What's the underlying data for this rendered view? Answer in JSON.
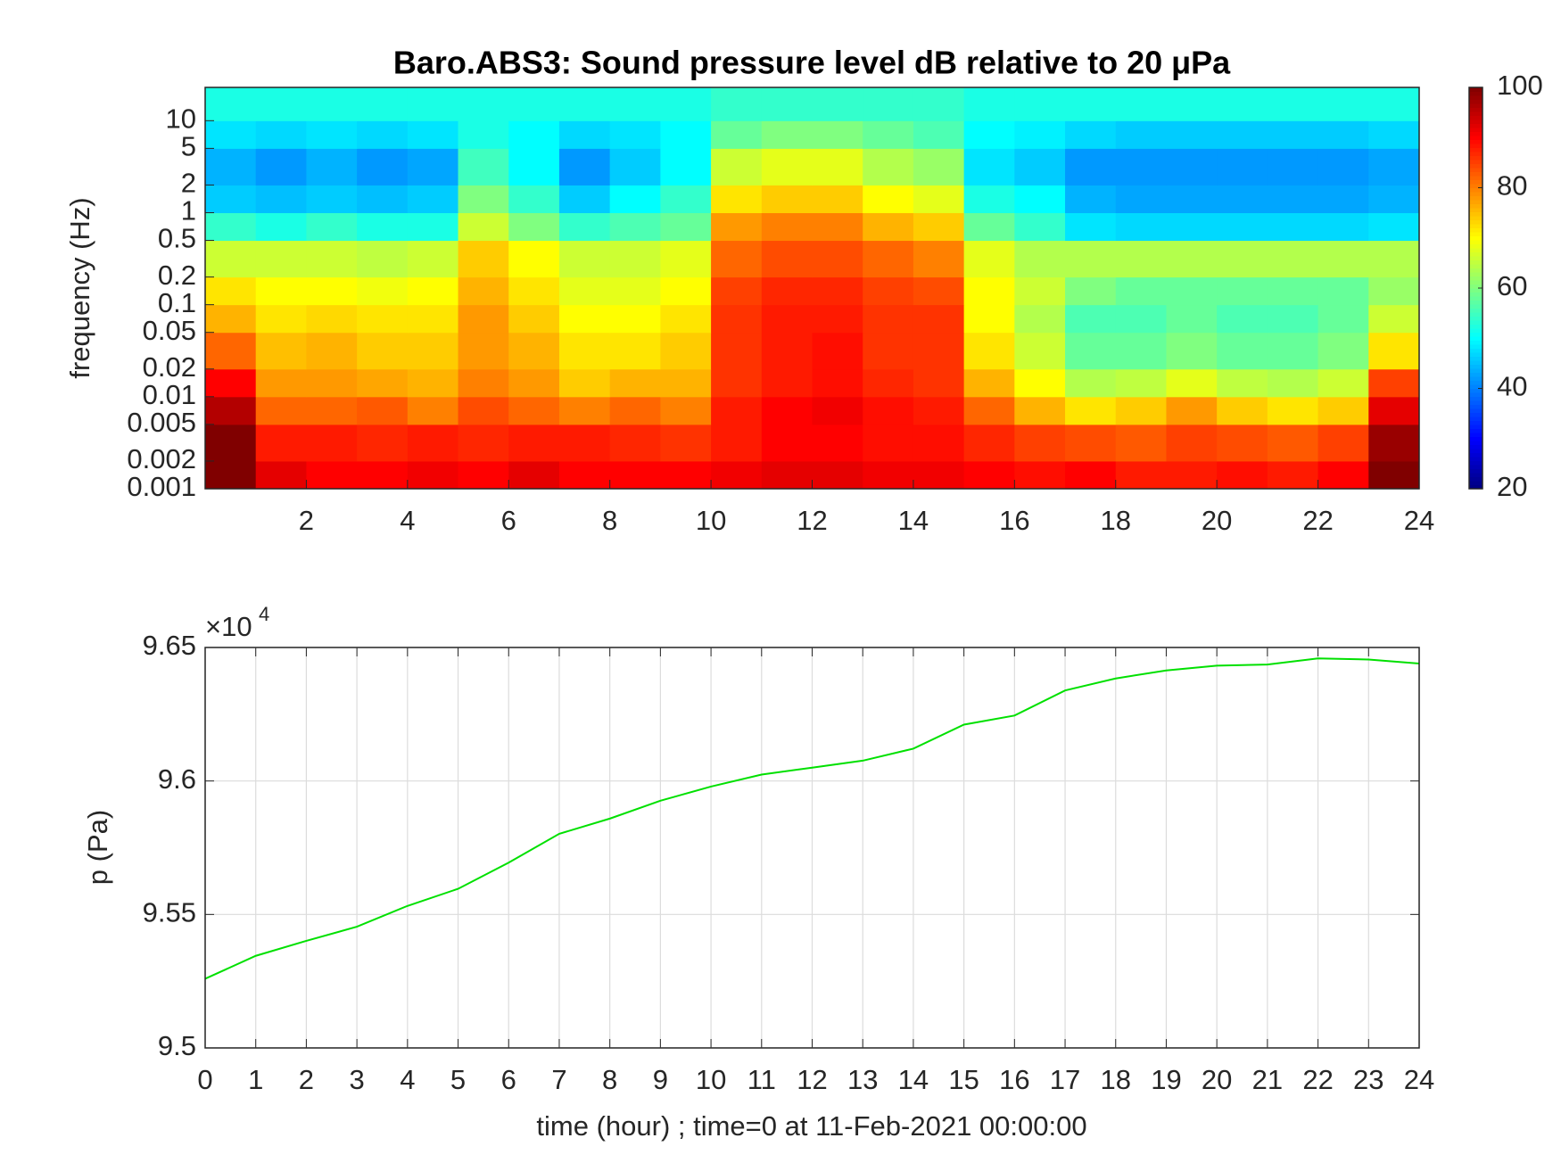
{
  "chart_data": [
    {
      "type": "heatmap",
      "title": "Baro.ABS3: Sound pressure level dB relative to 20 μPa",
      "ylabel": "frequency (Hz)",
      "colormap": "jet",
      "log_y": true,
      "x_edges": [
        0,
        1,
        2,
        3,
        4,
        5,
        6,
        7,
        8,
        9,
        10,
        11,
        12,
        13,
        14,
        15,
        16,
        17,
        18,
        19,
        20,
        21,
        22,
        23,
        24
      ],
      "y_edges": [
        0.001,
        0.002,
        0.005,
        0.01,
        0.02,
        0.05,
        0.1,
        0.2,
        0.5,
        1,
        2,
        5,
        10,
        23
      ],
      "values": [
        [
          100,
          92,
          90,
          90,
          91,
          90,
          92,
          90,
          90,
          90,
          91,
          92,
          92,
          91,
          91,
          90,
          89,
          90,
          88,
          88,
          89,
          88,
          90,
          100
        ],
        [
          100,
          88,
          88,
          87,
          88,
          87,
          88,
          88,
          87,
          86,
          88,
          90,
          90,
          89,
          89,
          87,
          85,
          84,
          83,
          85,
          84,
          83,
          85,
          98
        ],
        [
          96,
          82,
          82,
          83,
          80,
          84,
          82,
          80,
          82,
          80,
          88,
          90,
          91,
          89,
          88,
          82,
          76,
          72,
          74,
          78,
          74,
          72,
          74,
          92
        ],
        [
          90,
          78,
          78,
          77,
          76,
          80,
          78,
          74,
          76,
          76,
          86,
          88,
          89,
          87,
          86,
          76,
          70,
          64,
          65,
          68,
          65,
          64,
          66,
          85
        ],
        [
          82,
          75,
          76,
          74,
          74,
          78,
          76,
          72,
          72,
          74,
          86,
          88,
          89,
          86,
          86,
          72,
          66,
          58,
          58,
          60,
          58,
          58,
          60,
          72
        ],
        [
          76,
          72,
          73,
          72,
          72,
          78,
          74,
          70,
          70,
          72,
          86,
          88,
          88,
          86,
          86,
          70,
          64,
          56,
          56,
          58,
          56,
          56,
          58,
          66
        ],
        [
          72,
          70,
          70,
          69,
          70,
          76,
          72,
          68,
          68,
          70,
          85,
          87,
          87,
          85,
          84,
          70,
          66,
          60,
          58,
          58,
          58,
          58,
          58,
          62
        ],
        [
          66,
          66,
          66,
          65,
          66,
          74,
          70,
          66,
          66,
          68,
          82,
          84,
          84,
          82,
          80,
          68,
          64,
          64,
          64,
          64,
          64,
          64,
          64,
          64
        ],
        [
          54,
          52,
          54,
          52,
          52,
          66,
          60,
          54,
          56,
          58,
          78,
          80,
          80,
          76,
          74,
          58,
          54,
          48,
          47,
          47,
          47,
          47,
          47,
          48
        ],
        [
          46,
          45,
          46,
          45,
          46,
          60,
          54,
          46,
          50,
          54,
          72,
          74,
          74,
          70,
          68,
          52,
          50,
          44,
          43,
          43,
          43,
          43,
          43,
          44
        ],
        [
          44,
          42,
          44,
          42,
          43,
          55,
          50,
          42,
          46,
          50,
          66,
          68,
          68,
          64,
          62,
          48,
          46,
          42,
          42,
          42,
          42,
          42,
          42,
          43
        ],
        [
          48,
          47,
          48,
          47,
          48,
          52,
          50,
          47,
          48,
          50,
          58,
          60,
          60,
          58,
          56,
          50,
          49,
          47,
          46,
          46,
          46,
          46,
          46,
          47
        ],
        [
          52,
          52,
          52,
          52,
          52,
          52,
          52,
          52,
          52,
          52,
          54,
          54,
          54,
          54,
          54,
          52,
          52,
          52,
          52,
          52,
          52,
          52,
          52,
          52
        ]
      ],
      "xlim": [
        0,
        24
      ],
      "xticks": [
        2,
        4,
        6,
        8,
        10,
        12,
        14,
        16,
        18,
        20,
        22,
        24
      ],
      "ylim": [
        0.001,
        23
      ],
      "yticks": [
        0.001,
        0.002,
        0.005,
        0.01,
        0.02,
        0.05,
        0.1,
        0.2,
        0.5,
        1,
        2,
        5,
        10
      ],
      "clim": [
        20,
        100
      ],
      "cticks": [
        20,
        40,
        60,
        80,
        100
      ]
    },
    {
      "type": "line",
      "xlabel": "time (hour) ; time=0 at 11-Feb-2021 00:00:00",
      "ylabel": "p (Pa)",
      "x": [
        0,
        1,
        2,
        3,
        4,
        5,
        6,
        7,
        8,
        9,
        10,
        11,
        12,
        13,
        14,
        15,
        16,
        17,
        18,
        19,
        20,
        21,
        22,
        23,
        24
      ],
      "series": [
        {
          "color": "#00e000",
          "values": [
            95259,
            95345,
            95401,
            95454,
            95532,
            95596,
            95694,
            95802,
            95859,
            95926,
            95979,
            96024,
            96050,
            96076,
            96121,
            96211,
            96245,
            96339,
            96384,
            96414,
            96432,
            96436,
            96459,
            96455,
            96440
          ]
        }
      ],
      "xlim": [
        0,
        24
      ],
      "xticks": [
        0,
        1,
        2,
        3,
        4,
        5,
        6,
        7,
        8,
        9,
        10,
        11,
        12,
        13,
        14,
        15,
        16,
        17,
        18,
        19,
        20,
        21,
        22,
        23,
        24
      ],
      "ylim": [
        95000,
        96500
      ],
      "yticks": [
        {
          "value": 95000,
          "label": "9.5"
        },
        {
          "value": 95500,
          "label": "9.55"
        },
        {
          "value": 96000,
          "label": "9.6"
        },
        {
          "value": 96500,
          "label": "9.65"
        }
      ],
      "y_multiplier": {
        "base": "×10",
        "power": 4
      },
      "grid": true
    }
  ]
}
